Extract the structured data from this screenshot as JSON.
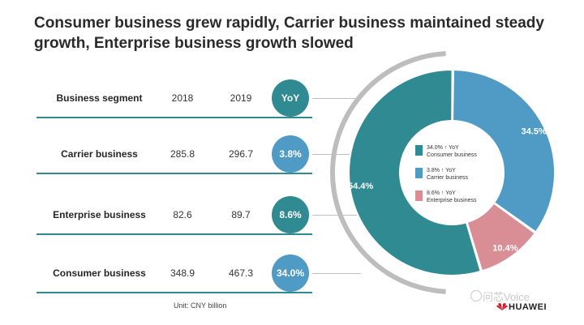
{
  "title": "Consumer business grew rapidly, Carrier business maintained steady growth, Enterprise business growth slowed",
  "table": {
    "headers": {
      "segment": "Business segment",
      "y2018": "2018",
      "y2019": "2019",
      "yoy": "YoY"
    },
    "rows": [
      {
        "segment": "Carrier business",
        "y2018": "285.8",
        "y2019": "296.7",
        "yoy": "3.8%"
      },
      {
        "segment": "Enterprise business",
        "y2018": "82.6",
        "y2019": "89.7",
        "yoy": "8.6%"
      },
      {
        "segment": "Consumer business",
        "y2018": "348.9",
        "y2019": "467.3",
        "yoy": "34.0%"
      }
    ],
    "unit": "Unit: CNY billion"
  },
  "colors": {
    "consumer": "#2f8a92",
    "carrier": "#4f9bc6",
    "enterprise": "#d98e95",
    "gray": "#bdbdbd",
    "header_badge": "#2f8a92"
  },
  "chart_data": {
    "type": "pie",
    "slices": [
      {
        "name": "Carrier business",
        "value": 34.5,
        "label": "34.5%",
        "yoy": "3.8% ↑ YoY"
      },
      {
        "name": "Enterprise business",
        "value": 10.4,
        "label": "10.4%",
        "yoy": "8.6% ↑ YoY"
      },
      {
        "name": "Consumer business",
        "value": 54.4,
        "label": "54.4%",
        "yoy": "34.0% ↑ YoY"
      }
    ],
    "legend": [
      {
        "text": "34.0% ↑ YoY",
        "sub": "Consumer business",
        "key": "consumer"
      },
      {
        "text": "3.8% ↑ YoY",
        "sub": "Carrier business",
        "key": "carrier"
      },
      {
        "text": "8.6% ↑ YoY",
        "sub": "Enterprise business",
        "key": "enterprise"
      }
    ]
  },
  "watermark": "问芯Voice",
  "brand": "HUAWEI"
}
